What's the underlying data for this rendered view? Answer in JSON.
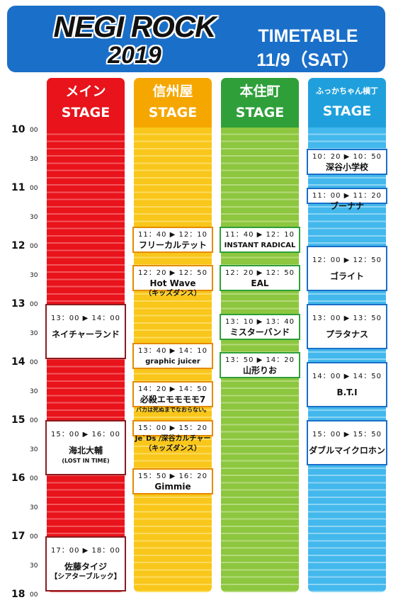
{
  "header": {
    "logo_line1": "NEGI ROCK",
    "logo_line2": "2019",
    "title": "TIMETABLE",
    "date": "11/9（SAT）"
  },
  "time_axis": [
    {
      "hour": "10",
      "min": "00"
    },
    {
      "hour": "",
      "min": "30"
    },
    {
      "hour": "11",
      "min": "00"
    },
    {
      "hour": "",
      "min": "30"
    },
    {
      "hour": "12",
      "min": "00"
    },
    {
      "hour": "",
      "min": "30"
    },
    {
      "hour": "13",
      "min": "00"
    },
    {
      "hour": "",
      "min": "30"
    },
    {
      "hour": "14",
      "min": "00"
    },
    {
      "hour": "",
      "min": "30"
    },
    {
      "hour": "15",
      "min": "00"
    },
    {
      "hour": "",
      "min": "30"
    },
    {
      "hour": "16",
      "min": "00"
    },
    {
      "hour": "",
      "min": "30"
    },
    {
      "hour": "17",
      "min": "00"
    },
    {
      "hour": "",
      "min": "30"
    },
    {
      "hour": "18",
      "min": "00"
    }
  ],
  "stages": [
    {
      "name": "メイン",
      "label": "STAGE",
      "head_color": "#e8131b",
      "body_color": "#e8131b",
      "stripe_color": "#f2585d",
      "border_color": "#8a1b1e",
      "acts": [
        {
          "time": "13：00 ▶ 14：00",
          "artist": "ネイチャーランド",
          "sub": "",
          "start": "13:00",
          "end": "14:00"
        },
        {
          "time": "15：00 ▶ 16：00",
          "artist": "海北大輔",
          "sub": "(LOST IN TIME)",
          "start": "15:00",
          "end": "16:00"
        },
        {
          "time": "17：00 ▶ 18：00",
          "artist": "佐藤タイジ",
          "sub": "【シアターブルック】",
          "start": "17:00",
          "end": "18:00"
        }
      ]
    },
    {
      "name": "信州屋",
      "label": "STAGE",
      "head_color": "#f5a700",
      "body_color": "#f9c61b",
      "stripe_color": "#fcdc5f",
      "border_color": "#e48a00",
      "acts": [
        {
          "time": "11：40 ▶ 12：10",
          "artist": "フリーカルテット",
          "sub": "",
          "start": "11:40",
          "end": "12:10"
        },
        {
          "time": "12：20 ▶ 12：50",
          "artist": "Hot Wave",
          "sub": "（キッズダンス）",
          "start": "12:20",
          "end": "12:50"
        },
        {
          "time": "13：40 ▶ 14：10",
          "artist": "graphic juicer",
          "sub": "",
          "start": "13:40",
          "end": "14:10"
        },
        {
          "time": "14：20 ▶ 14：50",
          "artist": "必殺エモモモモ7",
          "sub": "バカは死ぬまでなおらない。",
          "start": "14:20",
          "end": "14:50"
        },
        {
          "time": "15：00 ▶ 15：20",
          "artist": "Je`Ds /深谷カルチャー",
          "sub": "（キッズダンス）",
          "start": "15:00",
          "end": "15:20"
        },
        {
          "time": "15：50 ▶ 16：20",
          "artist": "Gimmie",
          "sub": "",
          "start": "15:50",
          "end": "16:20"
        }
      ]
    },
    {
      "name": "本住町",
      "label": "STAGE",
      "head_color": "#2f9f3a",
      "body_color": "#8dc63f",
      "stripe_color": "#b3da7a",
      "border_color": "#2f9f3a",
      "acts": [
        {
          "time": "11：40 ▶ 12：10",
          "artist": "INSTANT RADICAL",
          "sub": "",
          "start": "11:40",
          "end": "12:10"
        },
        {
          "time": "12：20 ▶ 12：50",
          "artist": "EAL",
          "sub": "",
          "start": "12:20",
          "end": "12:50"
        },
        {
          "time": "13：10 ▶ 13：40",
          "artist": "ミスターバンド",
          "sub": "",
          "start": "13:10",
          "end": "13:40"
        },
        {
          "time": "13：50 ▶ 14：20",
          "artist": "山形りお",
          "sub": "",
          "start": "13:50",
          "end": "14:20"
        }
      ]
    },
    {
      "name": "ふっかちゃん横丁",
      "label": "STAGE",
      "head_color": "#1fa0dc",
      "body_color": "#43b8ec",
      "stripe_color": "#8dd5f4",
      "border_color": "#1a6fc9",
      "acts": [
        {
          "time": "10：20 ▶ 10：50",
          "artist": "深谷小学校",
          "sub": "",
          "start": "10:20",
          "end": "10:50"
        },
        {
          "time": "11：00 ▶ 11：20",
          "artist": "ブーナナ",
          "sub": "",
          "start": "11:00",
          "end": "11:20"
        },
        {
          "time": "12：00 ▶ 12：50",
          "artist": "ゴライト",
          "sub": "",
          "start": "12:00",
          "end": "12:50"
        },
        {
          "time": "13：00 ▶ 13：50",
          "artist": "プラタナス",
          "sub": "",
          "start": "13:00",
          "end": "13:50"
        },
        {
          "time": "14：00 ▶ 14：50",
          "artist": "B.T.I",
          "sub": "",
          "start": "14:00",
          "end": "14:50"
        },
        {
          "time": "15：00 ▶ 15：50",
          "artist": "ダブルマイクロホン",
          "sub": "",
          "start": "15:00",
          "end": "15:50"
        }
      ]
    }
  ]
}
